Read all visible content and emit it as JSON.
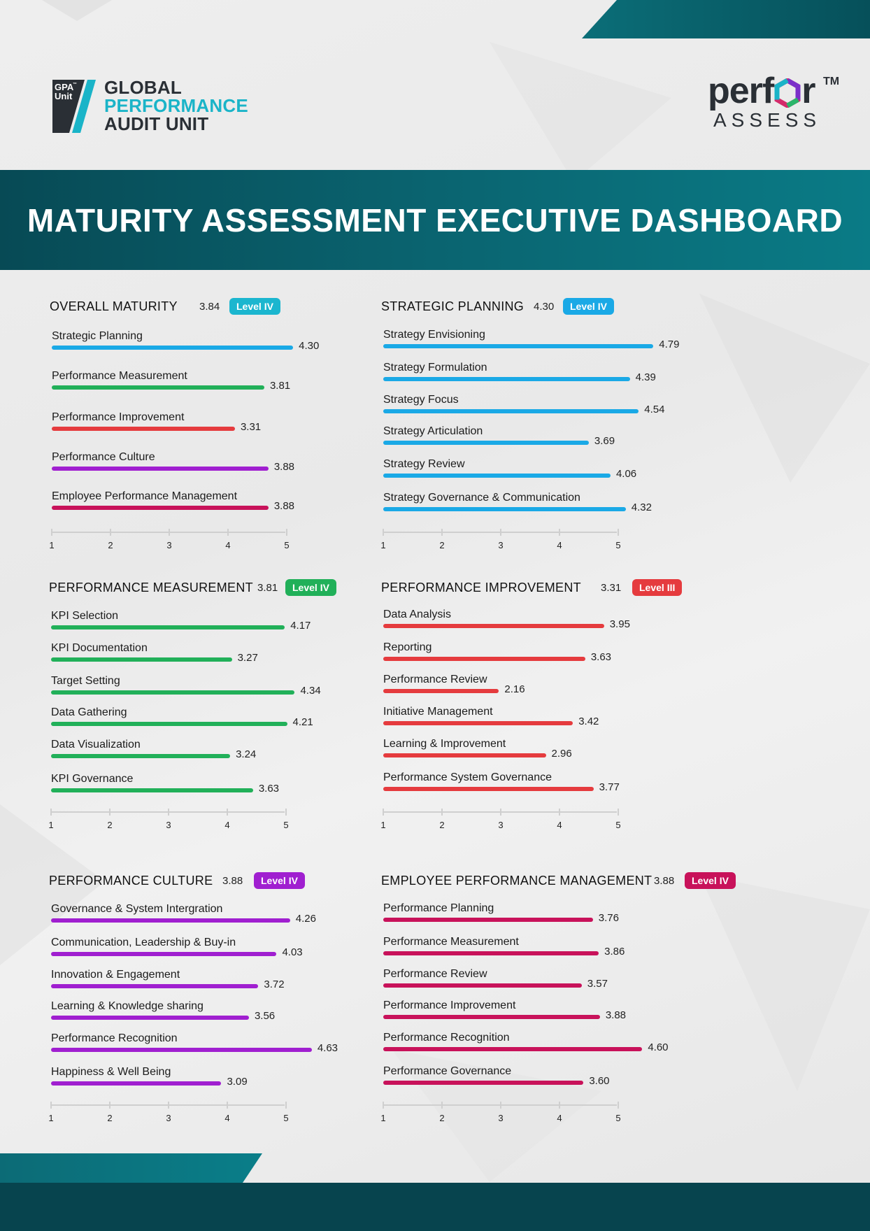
{
  "header": {
    "left_logo": {
      "mark_line1": "GPA",
      "mark_tm": "™",
      "mark_line2": "Unit",
      "line1": "GLOBAL",
      "line2": "PERFORMANCE",
      "line3": "AUDIT UNIT"
    },
    "right_logo": {
      "perfor_a": "perf",
      "perfor_b": "r",
      "tm": "TM",
      "assess": "ASSESS"
    }
  },
  "title": "MATURITY ASSESSMENT EXECUTIVE DASHBOARD",
  "colors": {
    "blue": "#1aa9e6",
    "green": "#21b059",
    "red": "#e53b3e",
    "purple": "#a01fd0",
    "crimson": "#c8125a",
    "teal_dark": "#074a55",
    "teal": "#0a7b86",
    "badge_teal": "#1bb6cf"
  },
  "axis_ticks": [
    "1",
    "2",
    "3",
    "4",
    "5"
  ],
  "chart_data": [
    {
      "type": "bar",
      "orientation": "horizontal",
      "title": "OVERALL MATURITY",
      "score": "3.84",
      "level": "Level IV",
      "xlim": [
        1,
        5
      ],
      "categories": [
        "Strategic Planning",
        "Performance Measurement",
        "Performance Improvement",
        "Performance Culture",
        "Employee Performance Management"
      ],
      "values": [
        4.3,
        3.81,
        3.31,
        3.88,
        3.88
      ],
      "value_labels": [
        "4.30",
        "3.81",
        "3.31",
        "3.88",
        "3.88"
      ],
      "bar_colors": [
        "#1aa9e6",
        "#21b059",
        "#e53b3e",
        "#a01fd0",
        "#c8125a"
      ]
    },
    {
      "type": "bar",
      "orientation": "horizontal",
      "title": "STRATEGIC PLANNING",
      "score": "4.30",
      "level": "Level IV",
      "xlim": [
        1,
        5
      ],
      "categories": [
        "Strategy Envisioning",
        "Strategy Formulation",
        "Strategy Focus",
        "Strategy Articulation",
        "Strategy Review",
        "Strategy Governance & Communication"
      ],
      "values": [
        4.79,
        4.39,
        4.54,
        3.69,
        4.06,
        4.32
      ],
      "value_labels": [
        "4.79",
        "4.39",
        "4.54",
        "3.69",
        "4.06",
        "4.32"
      ],
      "color": "#1aa9e6"
    },
    {
      "type": "bar",
      "orientation": "horizontal",
      "title": "PERFORMANCE MEASUREMENT",
      "score": "3.81",
      "level": "Level IV",
      "xlim": [
        1,
        5
      ],
      "categories": [
        "KPI Selection",
        "KPI Documentation",
        "Target Setting",
        "Data Gathering",
        "Data Visualization",
        "KPI Governance"
      ],
      "values": [
        4.17,
        3.27,
        4.34,
        4.21,
        3.24,
        3.63
      ],
      "value_labels": [
        "4.17",
        "3.27",
        "4.34",
        "4.21",
        "3.24",
        "3.63"
      ],
      "color": "#21b059"
    },
    {
      "type": "bar",
      "orientation": "horizontal",
      "title": "PERFORMANCE IMPROVEMENT",
      "score": "3.31",
      "level": "Level III",
      "xlim": [
        1,
        5
      ],
      "categories": [
        "Data Analysis",
        "Reporting",
        "Performance Review",
        "Initiative Management",
        "Learning & Improvement",
        "Performance System Governance"
      ],
      "values": [
        3.95,
        3.63,
        2.16,
        3.42,
        2.96,
        3.77
      ],
      "value_labels": [
        "3.95",
        "3.63",
        "2.16",
        "3.42",
        "2.96",
        "3.77"
      ],
      "color": "#e53b3e"
    },
    {
      "type": "bar",
      "orientation": "horizontal",
      "title": "PERFORMANCE CULTURE",
      "score": "3.88",
      "level": "Level IV",
      "xlim": [
        1,
        5
      ],
      "categories": [
        "Governance & System Intergration",
        "Communication, Leadership & Buy-in",
        "Innovation & Engagement",
        "Learning & Knowledge sharing",
        "Performance Recognition",
        "Happiness & Well Being"
      ],
      "values": [
        4.26,
        4.03,
        3.72,
        3.56,
        4.63,
        3.09
      ],
      "value_labels": [
        "4.26",
        "4.03",
        "3.72",
        "3.56",
        "4.63",
        "3.09"
      ],
      "color": "#a01fd0"
    },
    {
      "type": "bar",
      "orientation": "horizontal",
      "title": "EMPLOYEE PERFORMANCE MANAGEMENT",
      "score": "3.88",
      "level": "Level IV",
      "xlim": [
        1,
        5
      ],
      "categories": [
        "Performance Planning",
        "Performance Measurement",
        "Performance Review",
        "Performance Improvement",
        "Performance Recognition",
        "Performance Governance"
      ],
      "values": [
        3.76,
        3.86,
        3.57,
        3.88,
        4.6,
        3.6
      ],
      "value_labels": [
        "3.76",
        "3.86",
        "3.57",
        "3.88",
        "4.60",
        "3.60"
      ],
      "color": "#c8125a"
    }
  ]
}
